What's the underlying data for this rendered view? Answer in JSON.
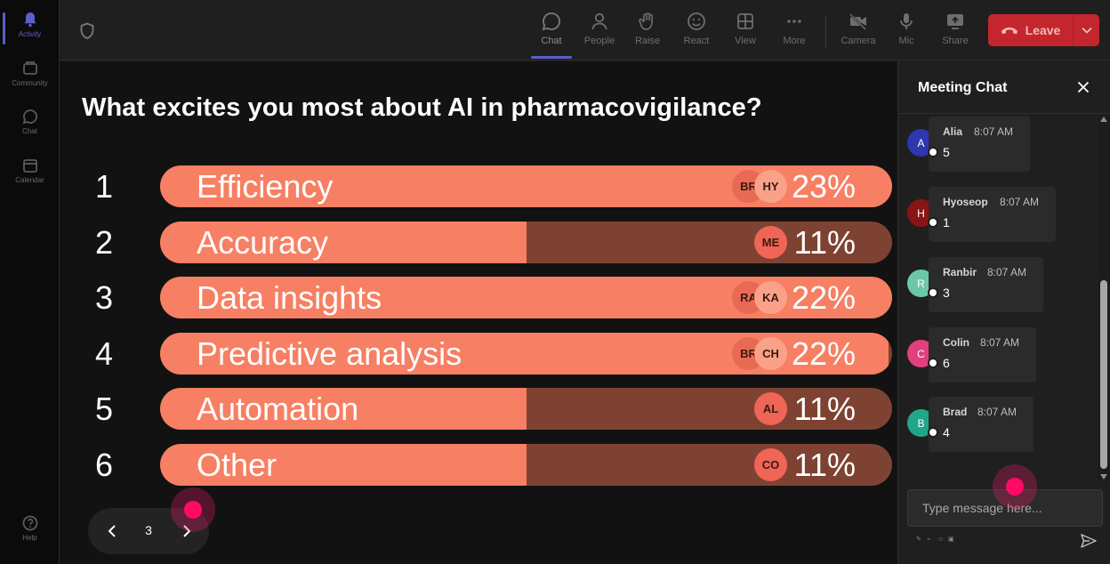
{
  "rail": {
    "items": [
      {
        "label": "Activity",
        "icon": "bell-icon",
        "active": true
      },
      {
        "label": "Community",
        "icon": "community-icon"
      },
      {
        "label": "Chat",
        "icon": "chat-icon"
      },
      {
        "label": "Calendar",
        "icon": "calendar-icon"
      }
    ],
    "help": {
      "label": "Help",
      "icon": "help-icon"
    }
  },
  "toolbar": {
    "chat": "Chat",
    "people": "People",
    "raise": "Raise",
    "react": "React",
    "view": "View",
    "more": "More",
    "camera": "Camera",
    "mic": "Mic",
    "share": "Share",
    "leave": "Leave"
  },
  "poll": {
    "question": "What excites you most about AI in pharmacovigilance?",
    "options": [
      {
        "num": "1",
        "label": "Efficiency",
        "percent_text": "23%",
        "fill": 1.0,
        "avatars": [
          "BR",
          "HY"
        ]
      },
      {
        "num": "2",
        "label": "Accuracy",
        "percent_text": "11%",
        "fill": 0.5,
        "avatars": [
          "ME"
        ]
      },
      {
        "num": "3",
        "label": "Data insights",
        "percent_text": "22%",
        "fill": 1.0,
        "avatars": [
          "RA",
          "KA"
        ]
      },
      {
        "num": "4",
        "label": "Predictive analysis",
        "percent_text": "22%",
        "fill": 0.995,
        "avatars": [
          "BR",
          "CH"
        ]
      },
      {
        "num": "5",
        "label": "Automation",
        "percent_text": "11%",
        "fill": 0.5,
        "avatars": [
          "AL"
        ]
      },
      {
        "num": "6",
        "label": "Other",
        "percent_text": "11%",
        "fill": 0.5,
        "avatars": [
          "CO"
        ]
      }
    ],
    "page": "3"
  },
  "chat": {
    "title": "Meeting Chat",
    "messages": [
      {
        "initial": "A",
        "name": "Alia",
        "time": "8:07 AM",
        "text": "5",
        "color": "#2e36b0"
      },
      {
        "initial": "H",
        "name": "Hyoseop",
        "time": "8:07 AM",
        "text": "1",
        "color": "#8a1414"
      },
      {
        "initial": "R",
        "name": "Ranbir",
        "time": "8:07 AM",
        "text": "3",
        "color": "#6cc7a6"
      },
      {
        "initial": "C",
        "name": "Colin",
        "time": "8:07 AM",
        "text": "6",
        "color": "#e0407e"
      },
      {
        "initial": "B",
        "name": "Brad",
        "time": "8:07 AM",
        "text": "4",
        "color": "#20a688"
      }
    ],
    "compose_placeholder": "Type message here..."
  },
  "colors": {
    "bar_fill": "#f77f63",
    "bar_track": "#7e4232",
    "leave": "#c4262e",
    "accent": "#5b5fc7"
  }
}
